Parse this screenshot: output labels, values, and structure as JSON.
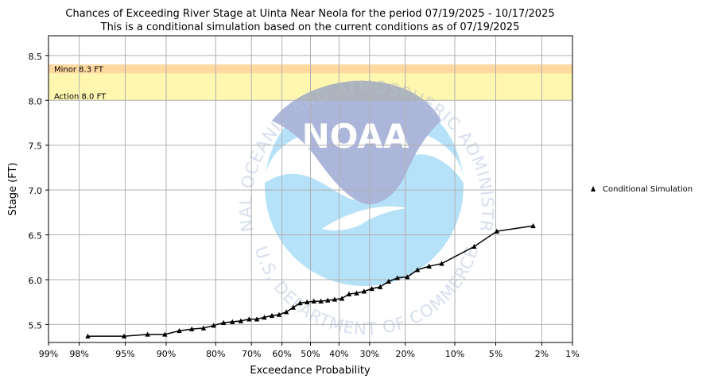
{
  "chart_data": {
    "type": "line",
    "title": "Chances of Exceeding River Stage at Uinta Near Neola for the period 07/19/2025 - 10/17/2025",
    "subtitle": "This is a conditional simulation based on the current conditions as of 07/19/2025",
    "xlabel": "Exceedance Probability",
    "ylabel": "Stage (FT)",
    "x_scale": "normal-probability (reversed)",
    "x_ticks": [
      {
        "p": 99,
        "label": "99%"
      },
      {
        "p": 98,
        "label": "98%"
      },
      {
        "p": 95,
        "label": "95%"
      },
      {
        "p": 90,
        "label": "90%"
      },
      {
        "p": 80,
        "label": "80%"
      },
      {
        "p": 70,
        "label": "70%"
      },
      {
        "p": 60,
        "label": "60%"
      },
      {
        "p": 50,
        "label": "50%"
      },
      {
        "p": 40,
        "label": "40%"
      },
      {
        "p": 30,
        "label": "30%"
      },
      {
        "p": 20,
        "label": "20%"
      },
      {
        "p": 10,
        "label": "10%"
      },
      {
        "p": 5,
        "label": "5%"
      },
      {
        "p": 2,
        "label": "2%"
      },
      {
        "p": 1,
        "label": "1%"
      }
    ],
    "y_ticks": [
      {
        "v": 5.5,
        "label": "5.5"
      },
      {
        "v": 6.0,
        "label": "6.0"
      },
      {
        "v": 6.5,
        "label": "6.5"
      },
      {
        "v": 7.0,
        "label": "7.0"
      },
      {
        "v": 7.5,
        "label": "7.5"
      },
      {
        "v": 8.0,
        "label": "8.0"
      },
      {
        "v": 8.5,
        "label": "8.5"
      }
    ],
    "ylim": [
      5.3,
      8.72
    ],
    "xlim_percent": [
      99,
      1
    ],
    "grid": true,
    "legend_position": "right",
    "thresholds": [
      {
        "label": "Minor 8.3 FT",
        "from": 8.3,
        "to": 8.4,
        "color": "#ffd9a0"
      },
      {
        "label": "Action 8.0 FT",
        "from": 8.0,
        "to": 8.3,
        "color": "#fff7b0"
      }
    ],
    "series": [
      {
        "name": "Conditional Simulation",
        "color": "#000000",
        "marker": "triangle",
        "points": [
          {
            "p": 97.6,
            "y": 5.37
          },
          {
            "p": 95.1,
            "y": 5.37
          },
          {
            "p": 92.6,
            "y": 5.39
          },
          {
            "p": 90.2,
            "y": 5.39
          },
          {
            "p": 87.8,
            "y": 5.43
          },
          {
            "p": 85.4,
            "y": 5.45
          },
          {
            "p": 82.9,
            "y": 5.46
          },
          {
            "p": 80.5,
            "y": 5.49
          },
          {
            "p": 78.0,
            "y": 5.52
          },
          {
            "p": 75.6,
            "y": 5.53
          },
          {
            "p": 73.2,
            "y": 5.54
          },
          {
            "p": 70.7,
            "y": 5.56
          },
          {
            "p": 68.3,
            "y": 5.56
          },
          {
            "p": 65.9,
            "y": 5.58
          },
          {
            "p": 63.4,
            "y": 5.6
          },
          {
            "p": 61.0,
            "y": 5.61
          },
          {
            "p": 58.5,
            "y": 5.64
          },
          {
            "p": 56.1,
            "y": 5.69
          },
          {
            "p": 53.7,
            "y": 5.74
          },
          {
            "p": 51.2,
            "y": 5.75
          },
          {
            "p": 48.8,
            "y": 5.76
          },
          {
            "p": 46.3,
            "y": 5.76
          },
          {
            "p": 43.9,
            "y": 5.77
          },
          {
            "p": 41.5,
            "y": 5.78
          },
          {
            "p": 39.0,
            "y": 5.79
          },
          {
            "p": 36.6,
            "y": 5.84
          },
          {
            "p": 34.1,
            "y": 5.85
          },
          {
            "p": 31.7,
            "y": 5.87
          },
          {
            "p": 29.3,
            "y": 5.9
          },
          {
            "p": 26.8,
            "y": 5.92
          },
          {
            "p": 24.4,
            "y": 5.98
          },
          {
            "p": 22.0,
            "y": 6.02
          },
          {
            "p": 19.5,
            "y": 6.03
          },
          {
            "p": 17.1,
            "y": 6.11
          },
          {
            "p": 14.6,
            "y": 6.15
          },
          {
            "p": 12.2,
            "y": 6.18
          },
          {
            "p": 7.3,
            "y": 6.37
          },
          {
            "p": 4.9,
            "y": 6.54
          },
          {
            "p": 2.4,
            "y": 6.6
          }
        ]
      }
    ]
  },
  "watermark": {
    "logo_text": "NOAA",
    "arc_top": "NATIONAL OCEANIC AND ATMOSPHERIC ADMINISTRATION",
    "arc_bottom": "U.S. DEPARTMENT OF COMMERCE",
    "colors": {
      "light": "#8ed3f5",
      "dark": "#8090c8",
      "text": "#8fa3cc"
    }
  }
}
